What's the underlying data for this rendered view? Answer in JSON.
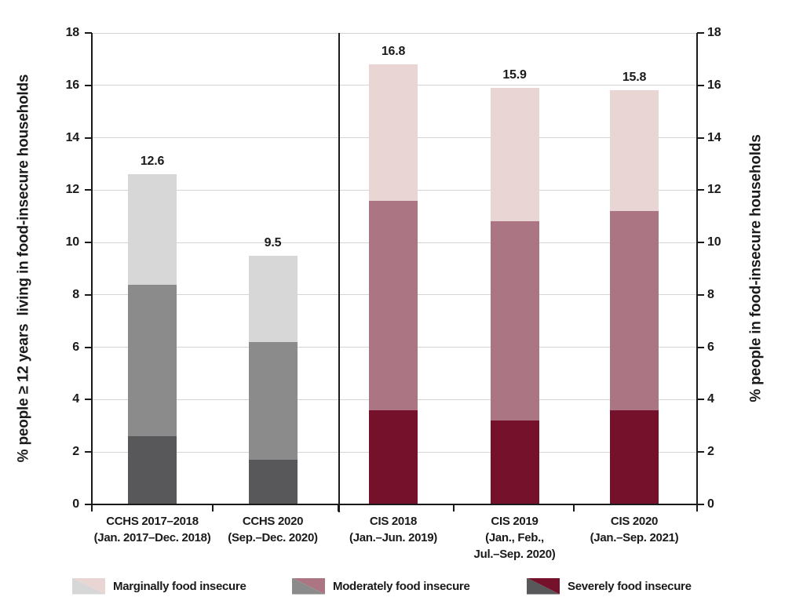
{
  "chart_data": {
    "type": "bar",
    "stacked": true,
    "ylim": [
      0,
      18
    ],
    "yticks": [
      0,
      2,
      4,
      6,
      8,
      10,
      12,
      14,
      16,
      18
    ],
    "grid": "horizontal",
    "left_axis_label": "% people ≥ 12 years  living in food-insecure households",
    "right_axis_label": "% people in food-insecure households",
    "series_order": [
      "severe",
      "moderate",
      "marginal"
    ],
    "series_names": {
      "marginal": "Marginally food insecure",
      "moderate": "Moderately food insecure",
      "severe": "Severely food insecure"
    },
    "groups": [
      {
        "id": "cchs-2017-2018",
        "label_lines": [
          "CCHS 2017–2018",
          "(Jan. 2017–Dec. 2018)"
        ],
        "palette": "gray",
        "values": {
          "severe": 2.6,
          "moderate": 5.8,
          "marginal": 4.2
        },
        "total": 12.6,
        "total_label": "12.6"
      },
      {
        "id": "cchs-2020",
        "label_lines": [
          "CCHS 2020",
          "(Sep.–Dec. 2020)"
        ],
        "palette": "gray",
        "values": {
          "severe": 1.7,
          "moderate": 4.5,
          "marginal": 3.3
        },
        "total": 9.5,
        "total_label": "9.5"
      },
      {
        "id": "cis-2018",
        "label_lines": [
          "CIS 2018",
          "(Jan.–Jun. 2019)"
        ],
        "palette": "red",
        "values": {
          "severe": 3.6,
          "moderate": 8.0,
          "marginal": 5.2
        },
        "total": 16.8,
        "total_label": "16.8"
      },
      {
        "id": "cis-2019",
        "label_lines": [
          "CIS 2019",
          "(Jan., Feb.,",
          "Jul.–Sep. 2020)"
        ],
        "palette": "red",
        "values": {
          "severe": 3.2,
          "moderate": 7.6,
          "marginal": 5.1
        },
        "total": 15.9,
        "total_label": "15.9"
      },
      {
        "id": "cis-2020",
        "label_lines": [
          "CIS 2020",
          "(Jan.–Sep. 2021)"
        ],
        "palette": "red",
        "values": {
          "severe": 3.6,
          "moderate": 7.6,
          "marginal": 4.6
        },
        "total": 15.8,
        "total_label": "15.8"
      }
    ],
    "palettes": {
      "gray": {
        "marginal": "#d7d7d7",
        "moderate": "#8b8b8b",
        "severe": "#58585a"
      },
      "red": {
        "marginal": "#e9d6d4",
        "moderate": "#ab7583",
        "severe": "#76112b"
      }
    },
    "legend": [
      {
        "label": "Marginally food insecure",
        "left_color": "#d7d7d7",
        "right_color": "#e9d6d4"
      },
      {
        "label": "Moderately food insecure",
        "left_color": "#8b8b8b",
        "right_color": "#ab7583"
      },
      {
        "label": "Severely food insecure",
        "left_color": "#58585a",
        "right_color": "#76112b"
      }
    ],
    "colors": {
      "axis": "#1a1a1a",
      "gridline": "#d4d4d4",
      "background": "#ffffff"
    }
  }
}
